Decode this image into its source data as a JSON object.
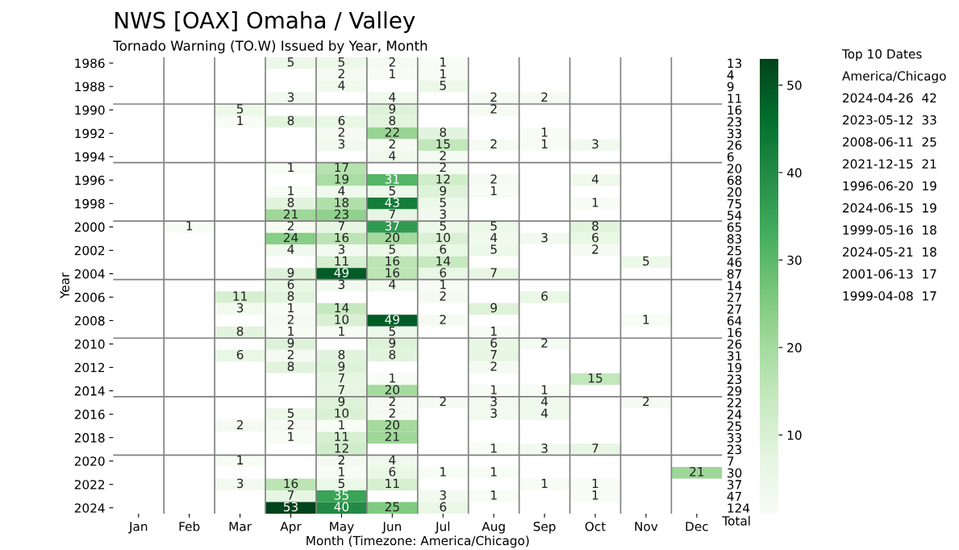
{
  "chart_data": {
    "type": "heatmap",
    "title": "NWS [OAX] Omaha / Valley",
    "subtitle": "Tornado Warning (TO.W) Issued by Year, Month",
    "xlabel": "Month (Timezone: America/Chicago)",
    "ylabel": "Year",
    "y2label": "Total",
    "categories": [
      "Jan",
      "Feb",
      "Mar",
      "Apr",
      "May",
      "Jun",
      "Jul",
      "Aug",
      "Sep",
      "Oct",
      "Nov",
      "Dec"
    ],
    "y_categories": [
      "1986",
      null,
      "1988",
      null,
      "1990",
      null,
      "1992",
      null,
      "1994",
      null,
      "1996",
      null,
      "1998",
      null,
      "2000",
      null,
      "2002",
      null,
      "2004",
      null,
      "2006",
      null,
      "2008",
      null,
      "2010",
      null,
      "2012",
      null,
      "2014",
      null,
      "2016",
      null,
      "2018",
      null,
      "2020",
      null,
      "2022",
      null,
      "2024"
    ],
    "y2_categories": [
      "13",
      "4",
      "9",
      "11",
      "16",
      "23",
      "33",
      "26",
      "6",
      "20",
      "68",
      "20",
      "75",
      "54",
      "65",
      "83",
      "25",
      "46",
      "87",
      "14",
      "27",
      "27",
      "64",
      "16",
      "26",
      "31",
      "19",
      "23",
      "29",
      "22",
      "24",
      "25",
      "33",
      "23",
      "7",
      "30",
      "37",
      "47",
      "124"
    ],
    "cells": [
      [
        null,
        null,
        null,
        5,
        5,
        2,
        1,
        null,
        null,
        null,
        null,
        null
      ],
      [
        null,
        null,
        null,
        null,
        2,
        1,
        1,
        null,
        null,
        null,
        null,
        null
      ],
      [
        null,
        null,
        null,
        null,
        4,
        null,
        5,
        null,
        null,
        null,
        null,
        null
      ],
      [
        null,
        null,
        null,
        3,
        null,
        4,
        null,
        2,
        2,
        null,
        null,
        null
      ],
      [
        null,
        null,
        5,
        null,
        null,
        9,
        null,
        2,
        null,
        null,
        null,
        null
      ],
      [
        null,
        null,
        1,
        8,
        6,
        8,
        null,
        null,
        null,
        null,
        null,
        null
      ],
      [
        null,
        null,
        null,
        null,
        2,
        22,
        8,
        null,
        1,
        null,
        null,
        null
      ],
      [
        null,
        null,
        null,
        null,
        3,
        2,
        15,
        2,
        1,
        3,
        null,
        null
      ],
      [
        null,
        null,
        null,
        null,
        null,
        4,
        2,
        null,
        null,
        null,
        null,
        null
      ],
      [
        null,
        null,
        null,
        1,
        17,
        null,
        2,
        null,
        null,
        null,
        null,
        null
      ],
      [
        null,
        null,
        null,
        null,
        19,
        31,
        12,
        2,
        null,
        4,
        null,
        null
      ],
      [
        null,
        null,
        null,
        1,
        4,
        5,
        9,
        1,
        null,
        null,
        null,
        null
      ],
      [
        null,
        null,
        null,
        8,
        18,
        43,
        5,
        null,
        null,
        1,
        null,
        null
      ],
      [
        null,
        null,
        null,
        21,
        23,
        7,
        3,
        null,
        null,
        null,
        null,
        null
      ],
      [
        null,
        1,
        null,
        2,
        7,
        37,
        5,
        5,
        null,
        8,
        null,
        null
      ],
      [
        null,
        null,
        null,
        24,
        16,
        20,
        10,
        4,
        3,
        6,
        null,
        null
      ],
      [
        null,
        null,
        null,
        4,
        3,
        5,
        6,
        5,
        null,
        2,
        null,
        null
      ],
      [
        null,
        null,
        null,
        null,
        11,
        16,
        14,
        null,
        null,
        null,
        5,
        null
      ],
      [
        null,
        null,
        null,
        9,
        49,
        16,
        6,
        7,
        null,
        null,
        null,
        null
      ],
      [
        null,
        null,
        null,
        6,
        3,
        4,
        1,
        null,
        null,
        null,
        null,
        null
      ],
      [
        null,
        null,
        11,
        8,
        null,
        null,
        2,
        null,
        6,
        null,
        null,
        null
      ],
      [
        null,
        null,
        3,
        1,
        14,
        null,
        null,
        9,
        null,
        null,
        null,
        null
      ],
      [
        null,
        null,
        null,
        2,
        10,
        49,
        2,
        null,
        null,
        null,
        1,
        null
      ],
      [
        null,
        null,
        8,
        1,
        1,
        5,
        null,
        1,
        null,
        null,
        null,
        null
      ],
      [
        null,
        null,
        null,
        9,
        null,
        9,
        null,
        6,
        2,
        null,
        null,
        null
      ],
      [
        null,
        null,
        6,
        2,
        8,
        8,
        null,
        7,
        null,
        null,
        null,
        null
      ],
      [
        null,
        null,
        null,
        8,
        9,
        null,
        null,
        2,
        null,
        null,
        null,
        null
      ],
      [
        null,
        null,
        null,
        null,
        7,
        1,
        null,
        null,
        null,
        15,
        null,
        null
      ],
      [
        null,
        null,
        null,
        null,
        7,
        20,
        null,
        1,
        1,
        null,
        null,
        null
      ],
      [
        null,
        null,
        null,
        null,
        9,
        2,
        2,
        3,
        4,
        null,
        2,
        null
      ],
      [
        null,
        null,
        null,
        5,
        10,
        2,
        null,
        3,
        4,
        null,
        null,
        null
      ],
      [
        null,
        null,
        2,
        2,
        1,
        20,
        null,
        null,
        null,
        null,
        null,
        null
      ],
      [
        null,
        null,
        null,
        1,
        11,
        21,
        null,
        null,
        null,
        null,
        null,
        null
      ],
      [
        null,
        null,
        null,
        null,
        12,
        null,
        null,
        1,
        3,
        7,
        null,
        null
      ],
      [
        null,
        null,
        1,
        null,
        2,
        4,
        null,
        null,
        null,
        null,
        null,
        null
      ],
      [
        null,
        null,
        null,
        null,
        1,
        6,
        1,
        1,
        null,
        null,
        null,
        21
      ],
      [
        null,
        null,
        3,
        16,
        5,
        11,
        null,
        null,
        1,
        1,
        null,
        null
      ],
      [
        null,
        null,
        null,
        7,
        35,
        null,
        3,
        1,
        null,
        1,
        null,
        null
      ],
      [
        null,
        null,
        null,
        53,
        40,
        25,
        6,
        null,
        null,
        null,
        null,
        null
      ]
    ],
    "data_labels": true,
    "grid": true,
    "clim": [
      1,
      53
    ],
    "cticks": [
      10,
      20,
      30,
      40,
      50
    ],
    "annotations": [
      "Top 10 Dates",
      "America/Chicago",
      "2024-04-26  42",
      "2023-05-12  33",
      "2008-06-11  25",
      "2021-12-15  21",
      "1996-06-20  19",
      "2024-06-15  19",
      "1999-05-16  18",
      "2024-05-21  18",
      "2001-06-13  17",
      "1999-04-08  17"
    ]
  }
}
